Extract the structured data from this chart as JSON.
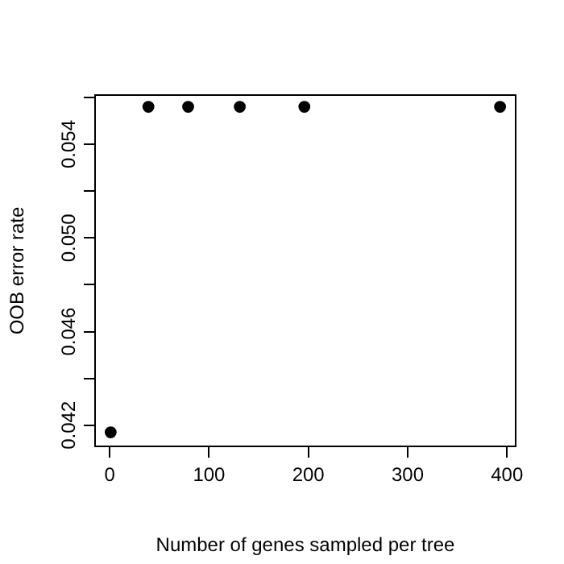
{
  "chart_data": {
    "type": "scatter",
    "xlabel": "Number of genes sampled per tree",
    "ylabel": "OOB error rate",
    "x": [
      1,
      39,
      79,
      131,
      196,
      393
    ],
    "series": [
      {
        "color": "#000000",
        "values": [
          0.0417,
          0.0556,
          0.0556,
          0.0556,
          0.0556,
          0.0556
        ]
      }
    ],
    "xlim": [
      -14.7,
      408.7
    ],
    "xticks": [
      0,
      100,
      200,
      300,
      400
    ],
    "ylim": [
      0.0411,
      0.0561
    ],
    "yticks": [
      0.042,
      {
        "value": 0.044,
        "label": null
      },
      0.046,
      {
        "value": 0.048,
        "label": null
      },
      {
        "value": 0.05,
        "label": "0.050"
      },
      {
        "value": 0.052,
        "label": null
      },
      0.054,
      {
        "value": 0.056,
        "label": null
      }
    ],
    "grid": false,
    "legend": false,
    "marker": "circle"
  }
}
